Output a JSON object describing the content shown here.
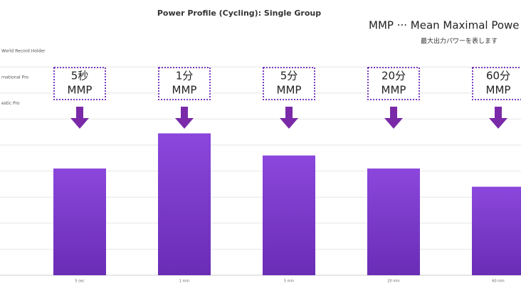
{
  "chart_data": {
    "type": "bar",
    "title": "Power Profile (Cycling): Single Group",
    "legend_title": "MMP ··· Mean Maximal Powe",
    "legend_subtitle": "最大出力パワーを表します",
    "categories": [
      "5 sec",
      "1 min",
      "5 min",
      "20 min",
      "60 min"
    ],
    "values": [
      4.1,
      5.45,
      4.6,
      4.1,
      3.4
    ],
    "color": "#7b3bd0",
    "ylim": [
      0,
      9
    ],
    "yticks": [
      {
        "value": 8.6,
        "label": "World Record Holder"
      },
      {
        "value": 7.6,
        "label": "rnational Pro"
      },
      {
        "value": 6.6,
        "label": "estic Pro"
      }
    ],
    "ygrid": [
      1,
      2,
      3,
      4,
      5,
      6,
      7,
      8
    ],
    "grid": true,
    "annotations": [
      [
        "5秒",
        "MMP"
      ],
      [
        "1分",
        "MMP"
      ],
      [
        "5分",
        "MMP"
      ],
      [
        "20分",
        "MMP"
      ],
      [
        "60分",
        "MMP"
      ]
    ]
  }
}
